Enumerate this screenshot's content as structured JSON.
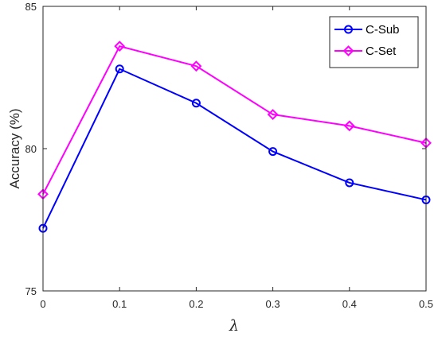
{
  "chart_data": {
    "type": "line",
    "x": [
      0,
      0.1,
      0.2,
      0.3,
      0.4,
      0.5
    ],
    "x_tick_labels": [
      "0",
      "0.1",
      "0.2",
      "0.3",
      "0.4",
      "0.5"
    ],
    "y_tick_labels": [
      "75",
      "80",
      "85"
    ],
    "y_ticks": [
      75,
      80,
      85
    ],
    "xlim": [
      0,
      0.5
    ],
    "ylim": [
      75,
      85
    ],
    "xlabel": "λ",
    "ylabel": "Accuracy (%)",
    "grid": false,
    "legend_position": "top-right",
    "series": [
      {
        "name": "C-Sub",
        "color": "#0000ff",
        "marker": "circle",
        "values": [
          77.2,
          82.8,
          81.6,
          79.9,
          78.8,
          78.2
        ]
      },
      {
        "name": "C-Set",
        "color": "#ff00ff",
        "marker": "diamond",
        "values": [
          78.4,
          83.6,
          82.9,
          81.2,
          80.8,
          80.2
        ]
      }
    ]
  }
}
